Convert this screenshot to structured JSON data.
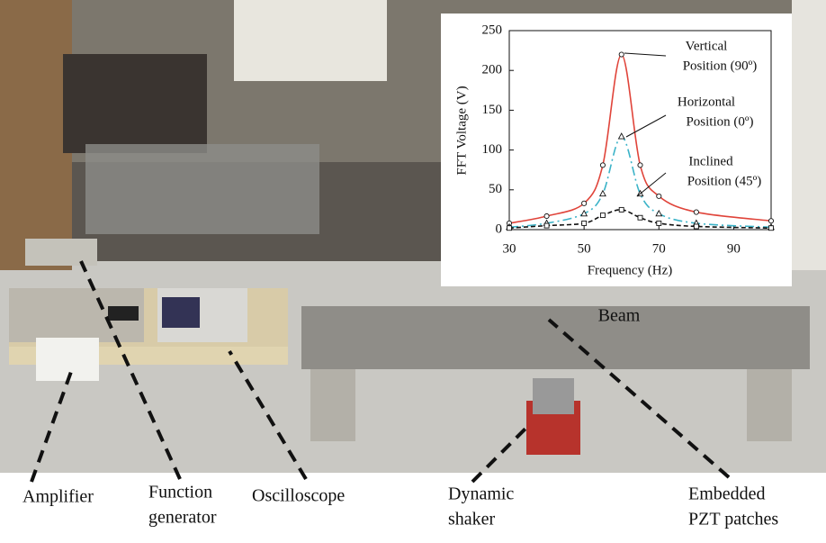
{
  "chart_data": {
    "type": "line",
    "xlabel": "Frequency (Hz)",
    "ylabel": "FFT Voltage (V)",
    "x": [
      30,
      40,
      50,
      55,
      60,
      65,
      70,
      80,
      100
    ],
    "series": [
      {
        "color": "#e0443a",
        "style": "solid",
        "marker": "circle",
        "values": [
          8,
          17,
          33,
          81,
          220,
          81,
          42,
          22,
          11
        ]
      },
      {
        "color": "#3bb3c8",
        "style": "dashdot",
        "marker": "triangle",
        "values": [
          3,
          8,
          20,
          45,
          117,
          45,
          20,
          8,
          3
        ]
      },
      {
        "color": "#111111",
        "style": "dashed",
        "marker": "square",
        "values": [
          2,
          5,
          8,
          18,
          25,
          15,
          8,
          4,
          2
        ]
      }
    ],
    "annotations": [
      {
        "lines": [
          "Vertical",
          "Position (90º)"
        ]
      },
      {
        "lines": [
          "Horizontal",
          "Position (0º)"
        ]
      },
      {
        "lines": [
          "Inclined",
          "Position (45º)"
        ]
      }
    ],
    "xlim": [
      30,
      100
    ],
    "xticks": [
      30,
      50,
      70,
      90
    ],
    "ylim": [
      0,
      250
    ],
    "yticks": [
      0,
      50,
      100,
      150,
      200,
      250
    ]
  },
  "photo_labels": [
    {
      "lines": [
        "Beam"
      ]
    },
    {
      "lines": [
        "Amplifier"
      ]
    },
    {
      "lines": [
        "Function",
        "generator"
      ]
    },
    {
      "lines": [
        "Oscilloscope"
      ]
    },
    {
      "lines": [
        "Dynamic",
        "shaker"
      ]
    },
    {
      "lines": [
        "Embedded",
        "PZT patches"
      ]
    }
  ]
}
